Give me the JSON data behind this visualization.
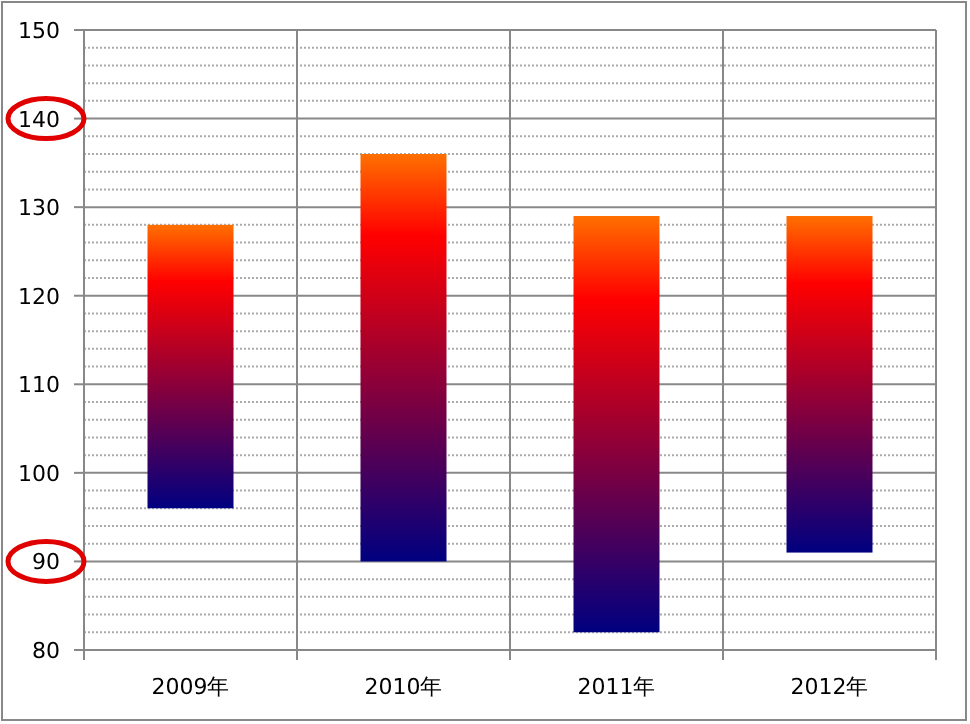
{
  "chart_data": {
    "type": "bar",
    "categories": [
      "2009年",
      "2010年",
      "2011年",
      "2012年"
    ],
    "base": [
      96,
      90,
      82,
      91
    ],
    "values": [
      32,
      46,
      47,
      38
    ],
    "color": "#ff0000",
    "ylim": [
      80,
      150
    ],
    "yticks": [
      80,
      90,
      100,
      110,
      120,
      130,
      140,
      150
    ],
    "grid": true
  }
}
